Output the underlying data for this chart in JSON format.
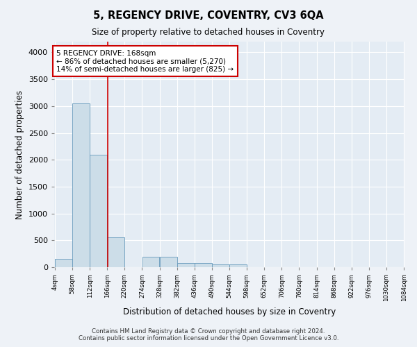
{
  "title": "5, REGENCY DRIVE, COVENTRY, CV3 6QA",
  "subtitle": "Size of property relative to detached houses in Coventry",
  "xlabel": "Distribution of detached houses by size in Coventry",
  "ylabel": "Number of detached properties",
  "bin_edges": [
    4,
    58,
    112,
    166,
    220,
    274,
    328,
    382,
    436,
    490,
    544,
    598,
    652,
    706,
    760,
    814,
    868,
    922,
    976,
    1030,
    1084
  ],
  "bar_heights": [
    150,
    3050,
    2100,
    550,
    0,
    200,
    200,
    75,
    75,
    50,
    50,
    0,
    0,
    0,
    0,
    0,
    0,
    0,
    0,
    0
  ],
  "bar_color": "#ccdde8",
  "bar_edgecolor": "#6699bb",
  "property_line_x": 168,
  "property_line_color": "#cc0000",
  "annotation_text": "5 REGENCY DRIVE: 168sqm\n← 86% of detached houses are smaller (5,270)\n14% of semi-detached houses are larger (825) →",
  "annotation_box_facecolor": "#ffffff",
  "annotation_box_edgecolor": "#cc0000",
  "ylim": [
    0,
    4200
  ],
  "yticks": [
    0,
    500,
    1000,
    1500,
    2000,
    2500,
    3000,
    3500,
    4000
  ],
  "footer_line1": "Contains HM Land Registry data © Crown copyright and database right 2024.",
  "footer_line2": "Contains public sector information licensed under the Open Government Licence v3.0.",
  "bg_color": "#eef2f7",
  "plot_bg_color": "#e4ecf4"
}
